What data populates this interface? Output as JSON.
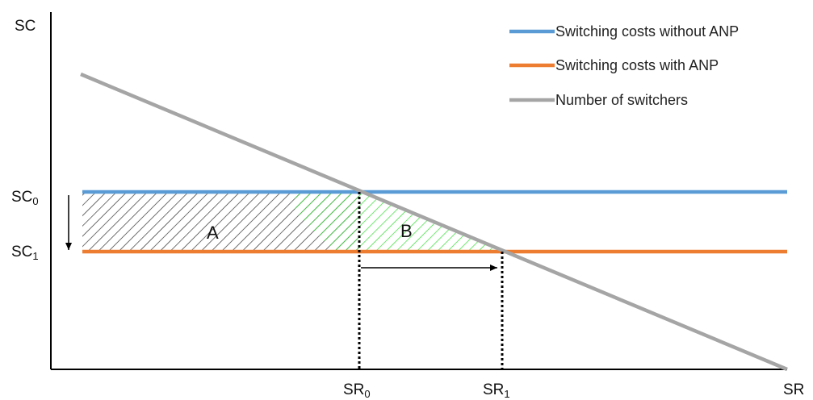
{
  "axes": {
    "y_label": "SC",
    "x_label": "SR"
  },
  "levels": {
    "sc0": {
      "base": "SC",
      "sub": "0"
    },
    "sc1": {
      "base": "SC",
      "sub": "1"
    },
    "sr0": {
      "base": "SR",
      "sub": "0"
    },
    "sr1": {
      "base": "SR",
      "sub": "1"
    }
  },
  "areas": {
    "a": "A",
    "b": "B"
  },
  "legend": [
    {
      "label": "Switching costs without ANP",
      "color": "#5b9bd5"
    },
    {
      "label": "Switching costs with ANP",
      "color": "#ed7d31"
    },
    {
      "label": "Number of switchers",
      "color": "#a5a5a5"
    }
  ],
  "colors": {
    "axis": "#000000",
    "hatch_a": "#333333",
    "hatch_b": "#33dd33"
  }
}
